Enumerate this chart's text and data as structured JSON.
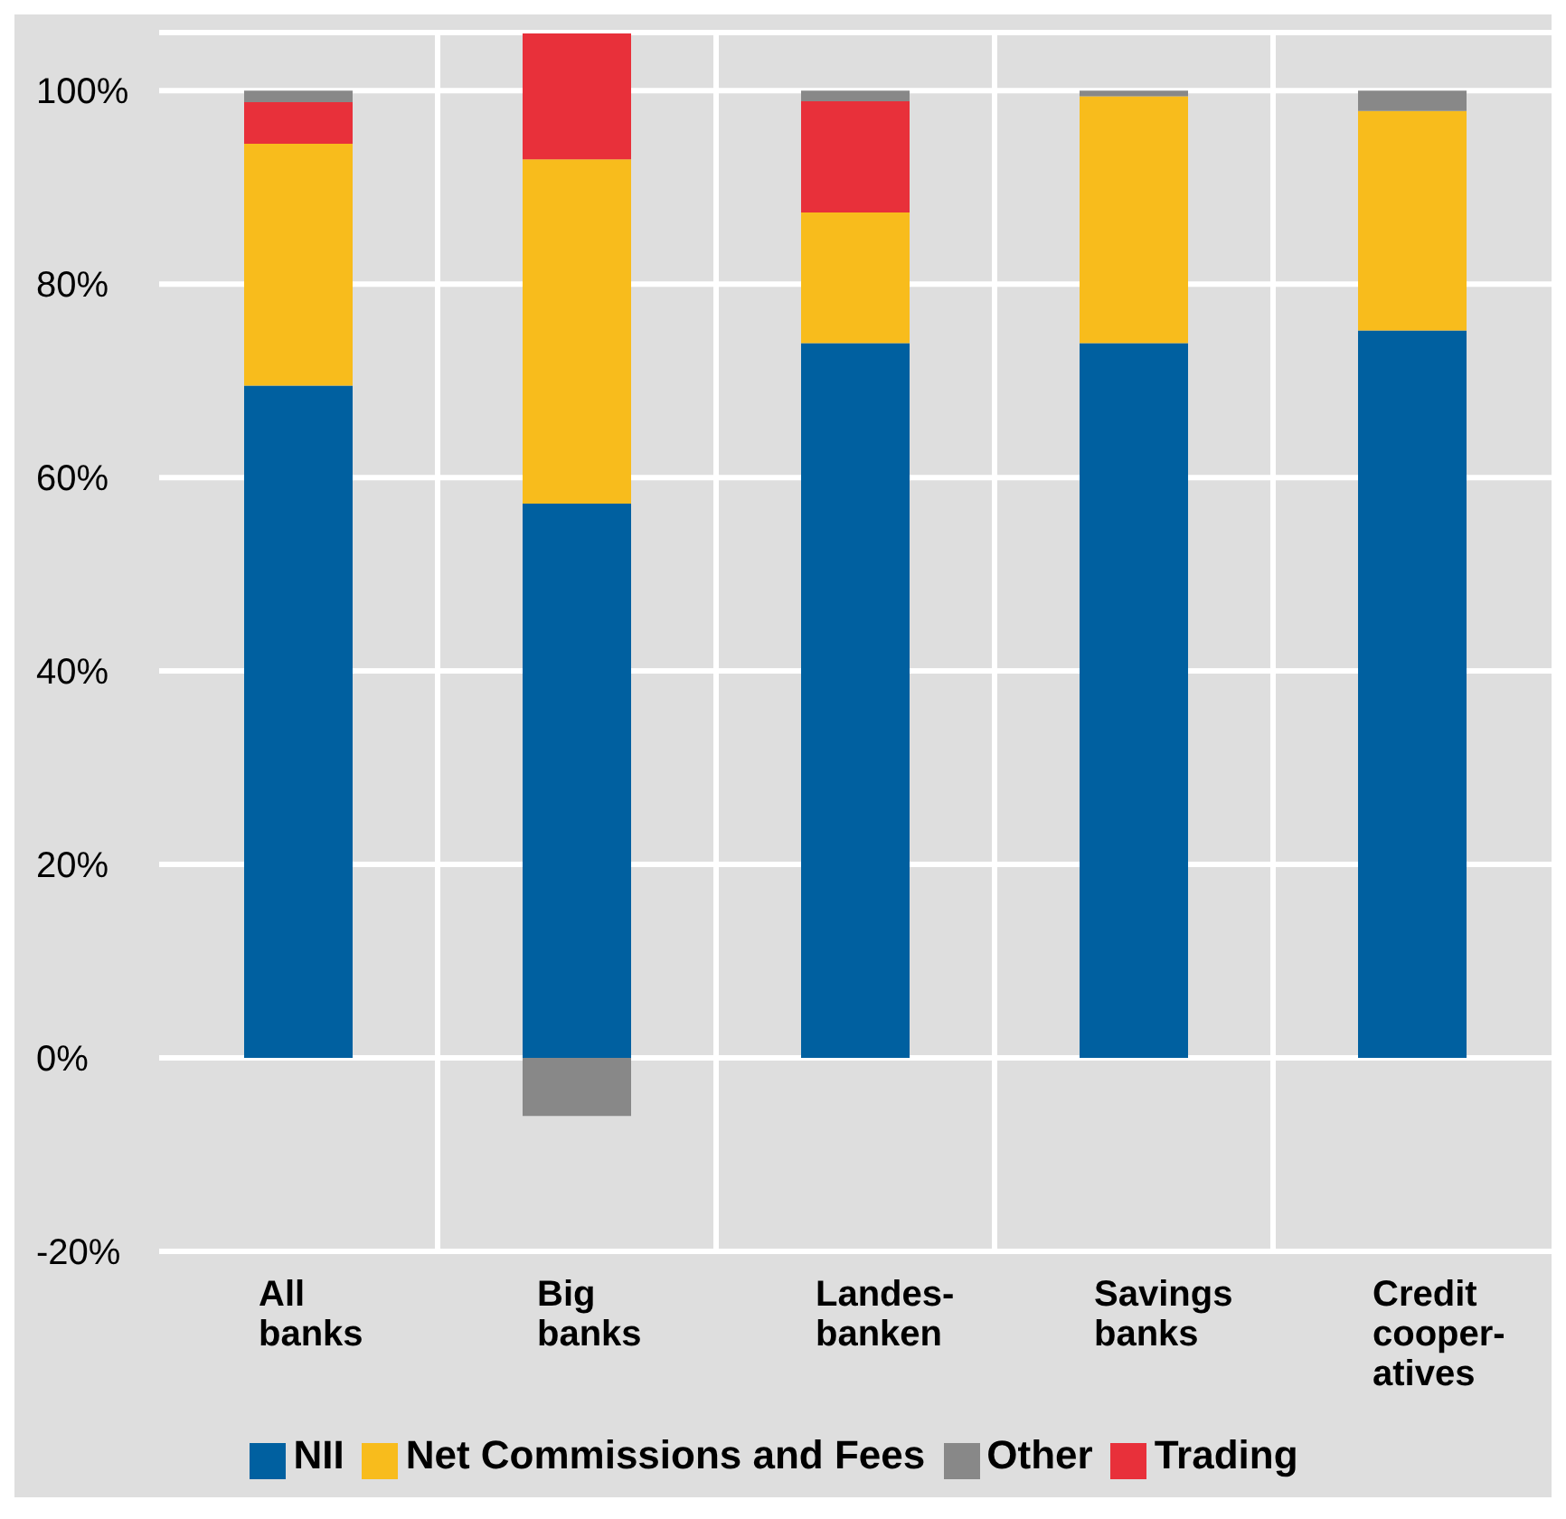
{
  "chart_data": {
    "type": "bar",
    "stacked": true,
    "categories": [
      "All\nbanks",
      "Big\nbanks",
      "Landes-\nbanken",
      "Savings\nbanks",
      "Credit\ncooper-\natives"
    ],
    "series": [
      {
        "name": "NII",
        "color": "#0060a0",
        "values": [
          69.5,
          57.3,
          73.9,
          73.9,
          75.2
        ]
      },
      {
        "name": "Net Commissions and Fees",
        "color": "#f8bc1c",
        "values": [
          25,
          35.6,
          13.5,
          25.5,
          22.7
        ]
      },
      {
        "name": "Trading",
        "color": "#e8303a",
        "values": [
          4.3,
          13,
          11.5,
          0,
          0
        ]
      },
      {
        "name": "Other",
        "color": "#888888",
        "values": [
          1.2,
          -6,
          1.1,
          0.6,
          2.1
        ]
      }
    ],
    "ylim": [
      -20,
      106
    ],
    "yticks": [
      {
        "value": -20,
        "label": "-20%"
      },
      {
        "value": 0,
        "label": "0%"
      },
      {
        "value": 20,
        "label": "20%"
      },
      {
        "value": 40,
        "label": "40%"
      },
      {
        "value": 60,
        "label": "60%"
      },
      {
        "value": 80,
        "label": "80%"
      },
      {
        "value": 100,
        "label": "100%"
      }
    ],
    "grid": true,
    "legend": "bottom"
  }
}
